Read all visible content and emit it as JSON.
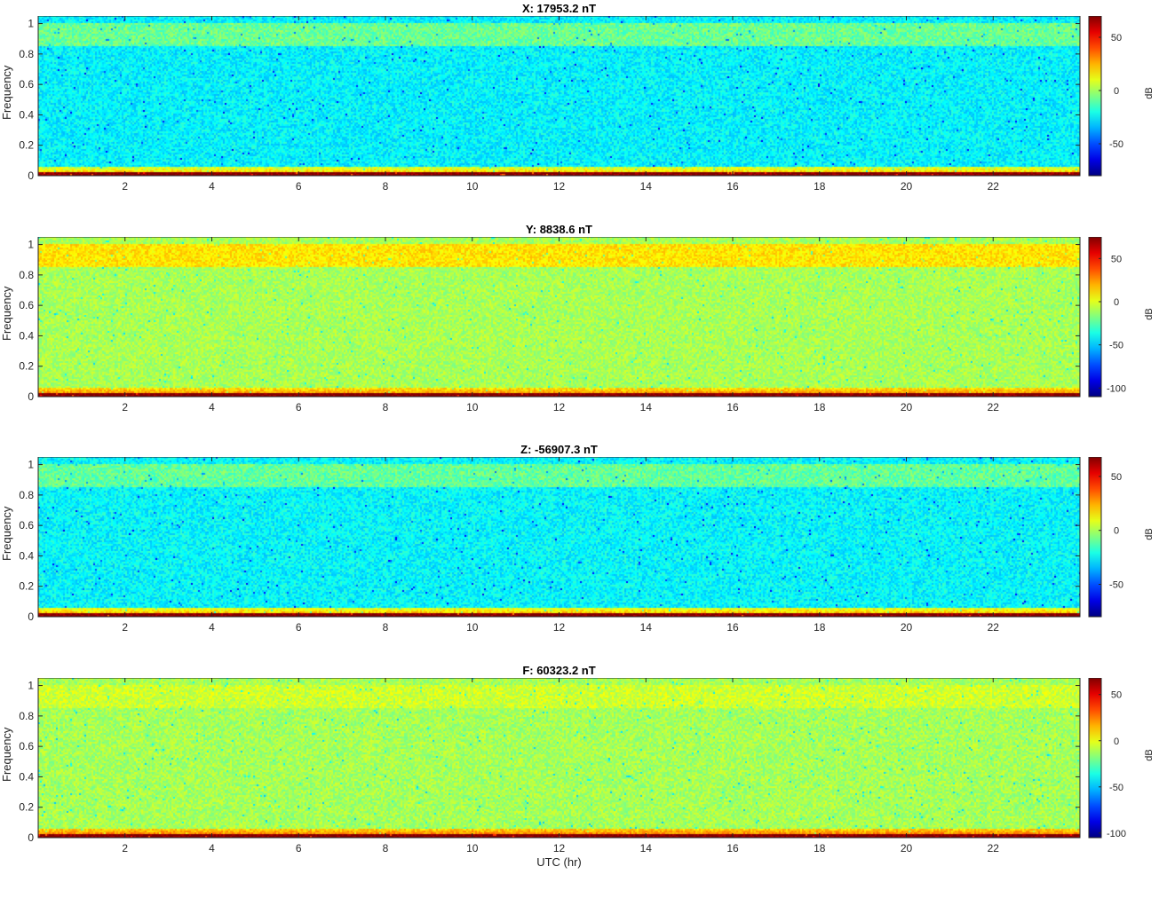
{
  "figure": {
    "xlabel": "UTC (hr)"
  },
  "chart_data": [
    {
      "type": "heatmap",
      "title": "X: 17953.2 nT",
      "ylabel": "Frequency",
      "xlim": [
        0,
        24
      ],
      "ylim": [
        0,
        1.05
      ],
      "xticks": [
        2,
        4,
        6,
        8,
        10,
        12,
        14,
        16,
        18,
        20,
        22
      ],
      "yticks": [
        0,
        0.2,
        0.4,
        0.6,
        0.8,
        1
      ],
      "colorbar": {
        "label": "dB",
        "range": [
          -80,
          70
        ],
        "ticks": [
          -50,
          0,
          50
        ],
        "colormap": "jet"
      },
      "levels_db": {
        "dc_band": 70,
        "low_freq_band": 20,
        "background": -25,
        "band_0.85_1.0": -8
      }
    },
    {
      "type": "heatmap",
      "title": "Y: 8838.6 nT",
      "ylabel": "Frequency",
      "xlim": [
        0,
        24
      ],
      "ylim": [
        0,
        1.05
      ],
      "xticks": [
        2,
        4,
        6,
        8,
        10,
        12,
        14,
        16,
        18,
        20,
        22
      ],
      "yticks": [
        0,
        0.2,
        0.4,
        0.6,
        0.8,
        1
      ],
      "colorbar": {
        "label": "dB",
        "range": [
          -110,
          75
        ],
        "ticks": [
          -100,
          -50,
          0,
          50
        ],
        "colormap": "jet"
      },
      "levels_db": {
        "dc_band": 75,
        "low_freq_band": 25,
        "background": -10,
        "band_0.85_1.0": 10
      }
    },
    {
      "type": "heatmap",
      "title": "Z: -56907.3 nT",
      "ylabel": "Frequency",
      "xlim": [
        0,
        24
      ],
      "ylim": [
        0,
        1.05
      ],
      "xticks": [
        2,
        4,
        6,
        8,
        10,
        12,
        14,
        16,
        18,
        20,
        22
      ],
      "yticks": [
        0,
        0.2,
        0.4,
        0.6,
        0.8,
        1
      ],
      "colorbar": {
        "label": "dB",
        "range": [
          -80,
          68
        ],
        "ticks": [
          -50,
          0,
          50
        ],
        "colormap": "jet"
      },
      "levels_db": {
        "dc_band": 68,
        "low_freq_band": 22,
        "background": -25,
        "band_0.85_1.0": -10
      }
    },
    {
      "type": "heatmap",
      "title": "F: 60323.2 nT",
      "ylabel": "Frequency",
      "xlim": [
        0,
        24
      ],
      "ylim": [
        0,
        1.05
      ],
      "xticks": [
        2,
        4,
        6,
        8,
        10,
        12,
        14,
        16,
        18,
        20,
        22
      ],
      "yticks": [
        0,
        0.2,
        0.4,
        0.6,
        0.8,
        1
      ],
      "colorbar": {
        "label": "dB",
        "range": [
          -105,
          68
        ],
        "ticks": [
          -100,
          -50,
          0,
          50
        ],
        "colormap": "jet"
      },
      "levels_db": {
        "dc_band": 68,
        "low_freq_band": 25,
        "background": -12,
        "band_0.85_1.0": -5
      }
    }
  ]
}
